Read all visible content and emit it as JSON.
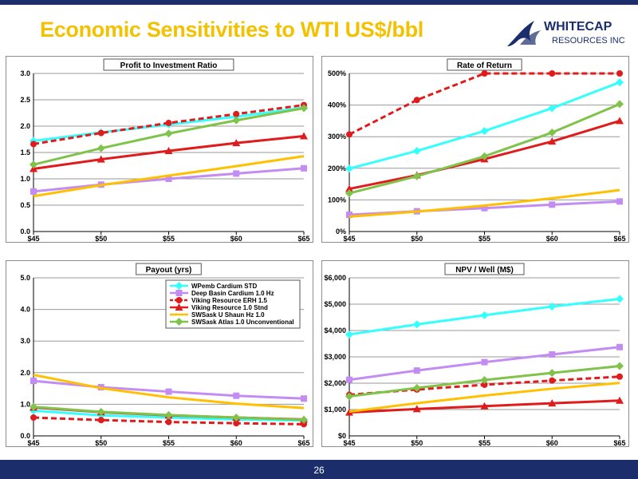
{
  "slide_title": "Economic Sensitivities to WTI US$/bbl",
  "logo": {
    "line1": "WHITECAP",
    "line2": "RESOURCES INC"
  },
  "page_number": "26",
  "colors": {
    "header_navy": "#1b2d6b",
    "title_gold": "#f2c200",
    "WPemb Cardium STD": "#33ffff",
    "Deep Basin Cardium 1.0 Hz": "#c38cf2",
    "Viking Resource ERH 1.5": "#e01b1b",
    "Viking Resource 1.0 Stnd": "#e01b1b",
    "SWSask U Shaun Hz 1.0": "#ffc000",
    "SWSask Atlas 1.0 Unconventional": "#7fc34a"
  },
  "chart_data": [
    {
      "type": "line",
      "title": "Profit to Investment Ratio",
      "categories": [
        "$45",
        "$50",
        "$55",
        "$60",
        "$65"
      ],
      "ylim": [
        0,
        3
      ],
      "yticks": [
        "0.0",
        "0.5",
        "1.0",
        "1.5",
        "2.0",
        "2.5",
        "3.0"
      ],
      "grid": true,
      "series": [
        {
          "name": "WPemb Cardium STD",
          "values": [
            1.72,
            1.88,
            2.03,
            2.18,
            2.35
          ]
        },
        {
          "name": "Deep Basin Cardium 1.0 Hz",
          "values": [
            0.76,
            0.89,
            1.0,
            1.1,
            1.2
          ]
        },
        {
          "name": "Viking Resource ERH 1.5",
          "values": [
            1.66,
            1.87,
            2.06,
            2.23,
            2.4
          ]
        },
        {
          "name": "Viking Resource 1.0 Stnd",
          "values": [
            1.19,
            1.37,
            1.53,
            1.68,
            1.81
          ]
        },
        {
          "name": "SWSask U Shaun Hz 1.0",
          "values": [
            0.67,
            0.88,
            1.06,
            1.24,
            1.43
          ]
        },
        {
          "name": "SWSask Atlas 1.0 Unconventional",
          "values": [
            1.27,
            1.58,
            1.86,
            2.11,
            2.34
          ]
        }
      ]
    },
    {
      "type": "line",
      "title": "Rate of Return",
      "categories": [
        "$45",
        "$50",
        "$55",
        "$60",
        "$65"
      ],
      "ylim": [
        0,
        500
      ],
      "yticks": [
        "0%",
        "100%",
        "200%",
        "300%",
        "400%",
        "500%"
      ],
      "grid": true,
      "series": [
        {
          "name": "WPemb Cardium STD",
          "values": [
            199,
            255,
            318,
            390,
            472
          ]
        },
        {
          "name": "Deep Basin Cardium 1.0 Hz",
          "values": [
            53,
            64,
            74,
            85,
            95
          ]
        },
        {
          "name": "Viking Resource ERH 1.5",
          "values": [
            307,
            416,
            500,
            500,
            500
          ]
        },
        {
          "name": "Viking Resource 1.0 Stnd",
          "values": [
            135,
            178,
            229,
            285,
            350
          ]
        },
        {
          "name": "SWSask U Shaun Hz 1.0",
          "values": [
            47,
            63,
            82,
            105,
            131
          ]
        },
        {
          "name": "SWSask Atlas 1.0 Unconventional",
          "values": [
            121,
            175,
            238,
            313,
            403
          ]
        }
      ]
    },
    {
      "type": "line",
      "title": "Payout (yrs)",
      "categories": [
        "$45",
        "$50",
        "$55",
        "$60",
        "$65"
      ],
      "ylim": [
        0,
        5
      ],
      "yticks": [
        "0.0",
        "1.0",
        "2.0",
        "3.0",
        "4.0",
        "5.0"
      ],
      "grid": true,
      "legend": "top-right",
      "series": [
        {
          "name": "WPemb Cardium STD",
          "values": [
            0.8,
            0.65,
            0.58,
            0.52,
            0.49
          ]
        },
        {
          "name": "Deep Basin Cardium 1.0 Hz",
          "values": [
            1.74,
            1.54,
            1.4,
            1.27,
            1.18
          ]
        },
        {
          "name": "Viking Resource ERH 1.5",
          "values": [
            0.58,
            0.5,
            0.44,
            0.4,
            0.37
          ]
        },
        {
          "name": "Viking Resource 1.0 Stnd",
          "values": [
            0.9,
            0.75,
            0.65,
            0.58,
            0.52
          ]
        },
        {
          "name": "SWSask U Shaun Hz 1.0",
          "values": [
            1.93,
            1.51,
            1.22,
            1.02,
            0.88
          ]
        },
        {
          "name": "SWSask Atlas 1.0 Unconventional",
          "values": [
            0.92,
            0.76,
            0.66,
            0.58,
            0.51
          ]
        }
      ]
    },
    {
      "type": "line",
      "title": "NPV / Well (M$)",
      "categories": [
        "$45",
        "$50",
        "$55",
        "$60",
        "$65"
      ],
      "ylim": [
        0,
        6000
      ],
      "yticks": [
        "$0",
        "$1,000",
        "$2,000",
        "$3,000",
        "$4,000",
        "$5,000",
        "$6,000"
      ],
      "grid": true,
      "series": [
        {
          "name": "WPemb Cardium STD",
          "values": [
            3850,
            4230,
            4580,
            4910,
            5200
          ]
        },
        {
          "name": "Deep Basin Cardium 1.0 Hz",
          "values": [
            2130,
            2480,
            2800,
            3090,
            3370
          ]
        },
        {
          "name": "Viking Resource ERH 1.5",
          "values": [
            1560,
            1760,
            1940,
            2100,
            2250
          ]
        },
        {
          "name": "Viking Resource 1.0 Stnd",
          "values": [
            890,
            1020,
            1130,
            1240,
            1340
          ]
        },
        {
          "name": "SWSask U Shaun Hz 1.0",
          "values": [
            920,
            1240,
            1530,
            1790,
            2010
          ]
        },
        {
          "name": "SWSask Atlas 1.0 Unconventional",
          "values": [
            1500,
            1820,
            2120,
            2390,
            2650
          ]
        }
      ]
    }
  ]
}
